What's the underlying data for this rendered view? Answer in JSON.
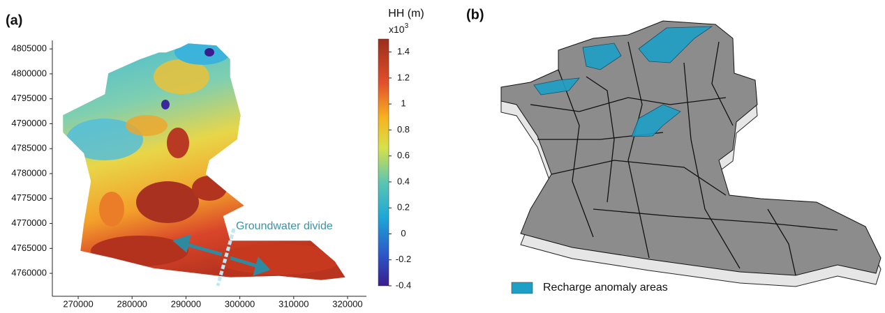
{
  "panel_a": {
    "label": "(a)",
    "xlim": [
      265200,
      323500
    ],
    "xticks": [
      270000,
      280000,
      290000,
      300000,
      310000,
      320000
    ],
    "ylim": [
      4755400,
      4806700
    ],
    "yticks": [
      4760000,
      4765000,
      4770000,
      4775000,
      4780000,
      4785000,
      4790000,
      4795000,
      4800000,
      4805000
    ],
    "colorbar": {
      "title": "HH (m)",
      "multiplier": "x10",
      "exponent": "3",
      "lim": [
        -0.4,
        1.5
      ],
      "ticks": [
        -0.4,
        -0.2,
        0,
        0.2,
        0.4,
        0.6,
        0.8,
        1.0,
        1.2,
        1.4
      ]
    },
    "annotation": "Groundwater divide"
  },
  "panel_b": {
    "label": "(b)",
    "legend": "Recharge anomaly areas",
    "legend_color": "#1e9fc6"
  }
}
